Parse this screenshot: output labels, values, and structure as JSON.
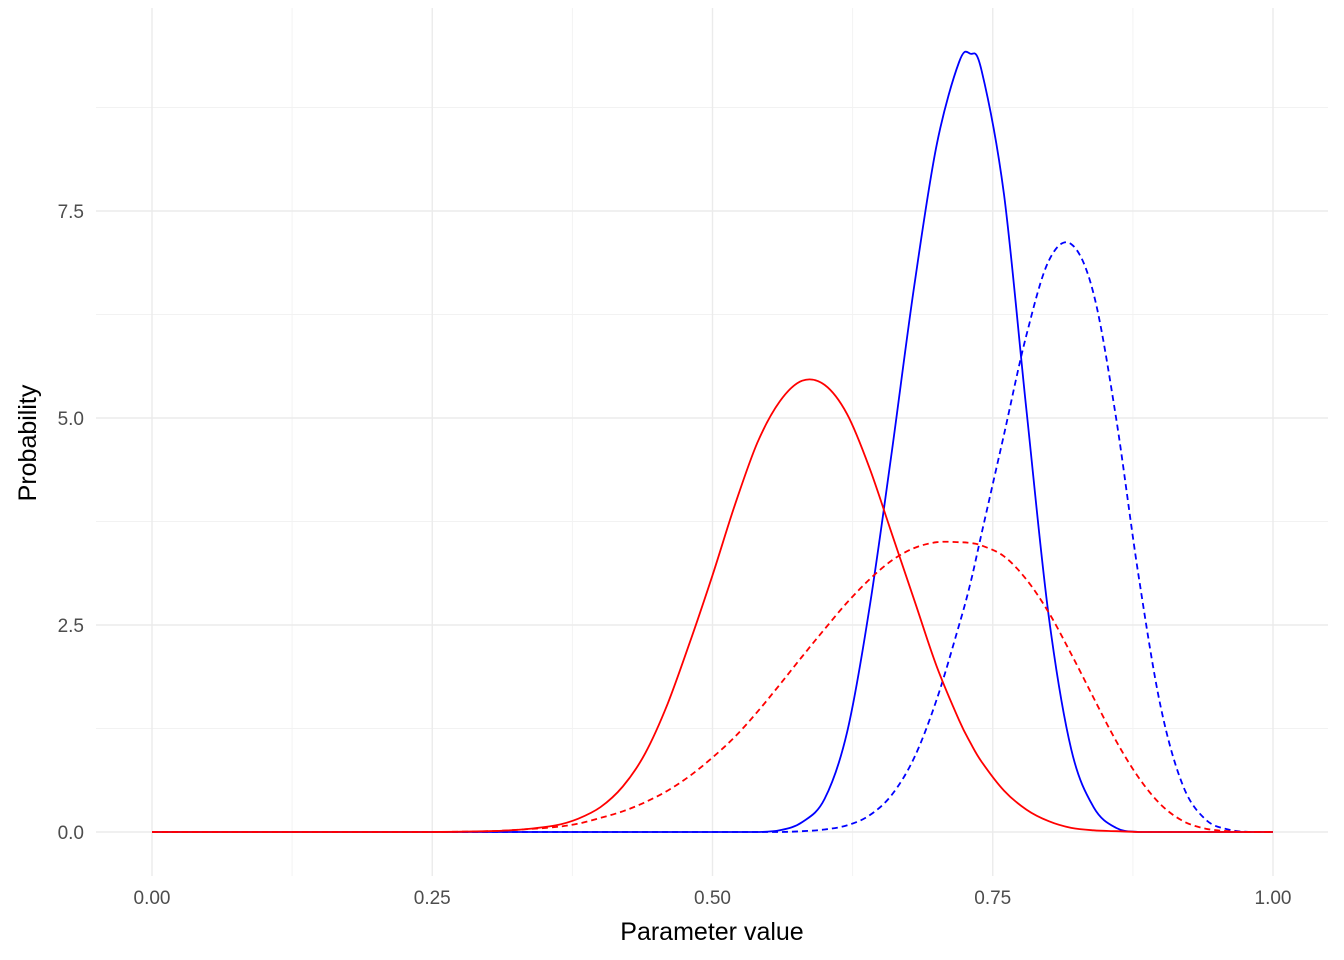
{
  "chart_data": {
    "type": "line",
    "title": "",
    "xlabel": "Parameter value",
    "ylabel": "Probability",
    "xlim": [
      0,
      1
    ],
    "ylim": [
      0,
      9.4
    ],
    "x_ticks": [
      0,
      0.25,
      0.5,
      0.75,
      1.0
    ],
    "x_tick_labels": [
      "0.00",
      "0.25",
      "0.50",
      "0.75",
      "1.00"
    ],
    "y_ticks": [
      0,
      2.5,
      5.0,
      7.5
    ],
    "y_tick_labels": [
      "0.0",
      "2.5",
      "5.0",
      "7.5"
    ],
    "grid": true,
    "legend": "none",
    "x": [
      0.0,
      0.05,
      0.1,
      0.15,
      0.2,
      0.25,
      0.3,
      0.33,
      0.36,
      0.38,
      0.4,
      0.42,
      0.44,
      0.46,
      0.48,
      0.5,
      0.52,
      0.54,
      0.56,
      0.58,
      0.6,
      0.62,
      0.64,
      0.66,
      0.68,
      0.7,
      0.72,
      0.73,
      0.74,
      0.76,
      0.78,
      0.8,
      0.82,
      0.84,
      0.86,
      0.88,
      0.9,
      0.92,
      0.94,
      0.96,
      0.98,
      1.0
    ],
    "series": [
      {
        "color": "#ff0000",
        "dash": "solid",
        "values": [
          0,
          0,
          0,
          0,
          0,
          0,
          0.01,
          0.03,
          0.08,
          0.16,
          0.3,
          0.55,
          0.95,
          1.55,
          2.3,
          3.1,
          3.95,
          4.7,
          5.2,
          5.45,
          5.4,
          5.05,
          4.4,
          3.6,
          2.8,
          2.0,
          1.35,
          1.08,
          0.85,
          0.5,
          0.27,
          0.13,
          0.05,
          0.02,
          0.01,
          0,
          0,
          0,
          0,
          0,
          0,
          0
        ]
      },
      {
        "color": "#ff0000",
        "dash": "dashed",
        "values": [
          0,
          0,
          0,
          0,
          0,
          0,
          0.01,
          0.03,
          0.06,
          0.1,
          0.17,
          0.25,
          0.36,
          0.5,
          0.68,
          0.9,
          1.15,
          1.45,
          1.78,
          2.12,
          2.45,
          2.77,
          3.05,
          3.28,
          3.43,
          3.5,
          3.5,
          3.49,
          3.46,
          3.33,
          3.05,
          2.65,
          2.15,
          1.62,
          1.1,
          0.66,
          0.33,
          0.13,
          0.04,
          0.01,
          0,
          0
        ]
      },
      {
        "color": "#0000ff",
        "dash": "solid",
        "values": [
          0,
          0,
          0,
          0,
          0,
          0,
          0,
          0,
          0,
          0,
          0,
          0,
          0,
          0,
          0,
          0,
          0,
          0,
          0.02,
          0.12,
          0.4,
          1.2,
          2.7,
          4.6,
          6.6,
          8.3,
          9.3,
          9.4,
          9.2,
          7.7,
          5.1,
          2.6,
          1.0,
          0.3,
          0.05,
          0,
          0,
          0,
          0,
          0,
          0,
          0
        ]
      },
      {
        "color": "#0000ff",
        "dash": "dashed",
        "values": [
          0,
          0,
          0,
          0,
          0,
          0,
          0,
          0,
          0,
          0,
          0,
          0,
          0,
          0,
          0,
          0,
          0,
          0,
          0,
          0.01,
          0.03,
          0.08,
          0.2,
          0.45,
          0.9,
          1.6,
          2.5,
          3.0,
          3.6,
          4.8,
          6.0,
          6.9,
          7.1,
          6.5,
          5.0,
          3.1,
          1.5,
          0.55,
          0.15,
          0.03,
          0,
          0
        ]
      }
    ]
  }
}
